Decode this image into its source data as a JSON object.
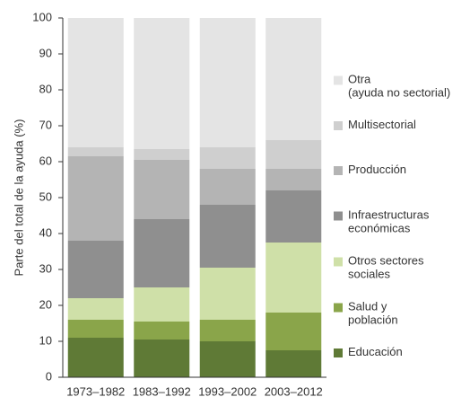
{
  "chart_data": {
    "type": "stacked-bar",
    "ylabel": "Parte del total de la ayuda (%)",
    "categories": [
      "1973–1982",
      "1983–1992",
      "1993–2002",
      "2003–2012"
    ],
    "series": [
      {
        "name": "Educación",
        "color": "#5f7a36",
        "values": [
          11,
          10.5,
          10,
          7.5
        ]
      },
      {
        "name": "Salud y\npoblación",
        "color": "#8aa54a",
        "values": [
          5,
          5,
          6,
          10.5
        ]
      },
      {
        "name": "Otros sectores\nsociales",
        "color": "#cfe0a8",
        "values": [
          6,
          9.5,
          14.5,
          19.5
        ]
      },
      {
        "name": "Infraestructuras\neconómicas",
        "color": "#8f8f8f",
        "values": [
          16,
          19,
          17.5,
          14.5
        ]
      },
      {
        "name": "Producción",
        "color": "#b4b4b4",
        "values": [
          23.5,
          16.5,
          10,
          6
        ]
      },
      {
        "name": "Multisectorial",
        "color": "#cfcfcf",
        "values": [
          2.5,
          3,
          6,
          8
        ]
      },
      {
        "name": "Otra\n(ayuda no sectorial)",
        "color": "#e4e4e4",
        "values": [
          36,
          36.5,
          36,
          34
        ]
      }
    ],
    "ylim": [
      0,
      100
    ],
    "yticks": [
      0,
      10,
      20,
      30,
      40,
      50,
      60,
      70,
      80,
      90,
      100
    ]
  }
}
